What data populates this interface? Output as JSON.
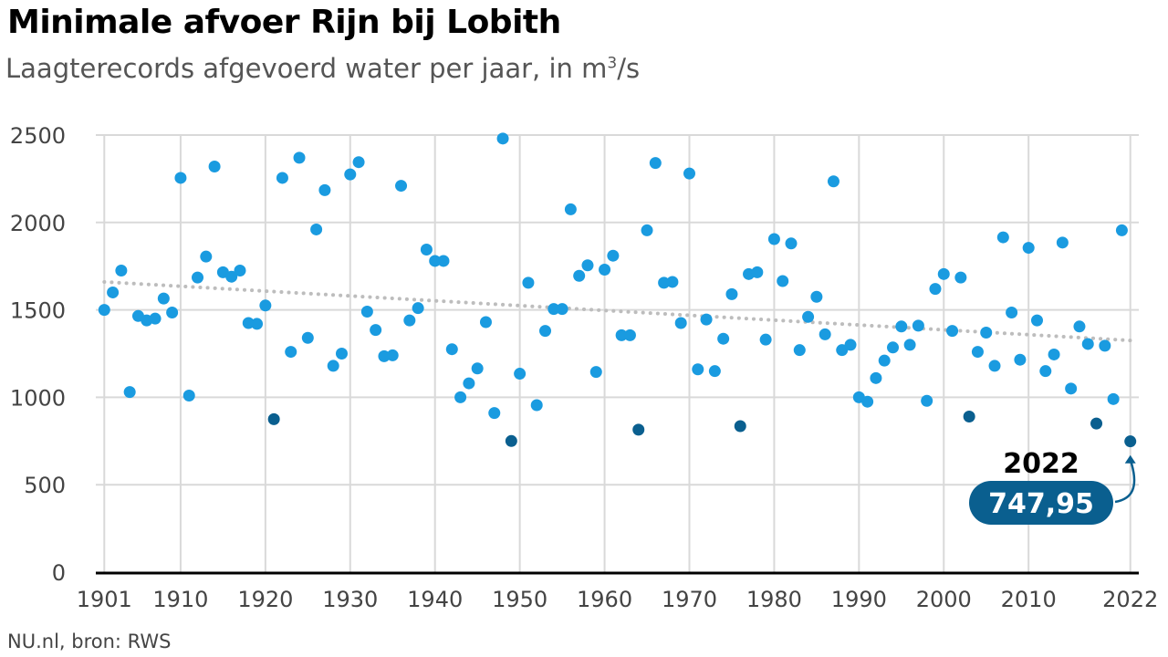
{
  "header": {
    "title": "Minimale afvoer Rijn bij Lobith",
    "subtitle_text": "Laagterecords afgevoerd water per jaar, in m",
    "subtitle_sup": "3",
    "subtitle_tail": "/s"
  },
  "footer": {
    "source": "NU.nl, bron: RWS"
  },
  "colors": {
    "point": "#1a9be0",
    "record_point": "#0a5f8f",
    "trend": "#bdbdbd",
    "grid": "#d9d9d9",
    "axis": "#000000",
    "callout_bg": "#0a5f8f"
  },
  "chart_data": {
    "type": "scatter",
    "title": "Minimale afvoer Rijn bij Lobith",
    "subtitle": "Laagterecords afgevoerd water per jaar, in m³/s",
    "xlabel": "",
    "ylabel": "",
    "xlim": [
      1900,
      2023
    ],
    "ylim": [
      0,
      2500
    ],
    "x_ticks": [
      1901,
      1910,
      1920,
      1930,
      1940,
      1950,
      1960,
      1970,
      1980,
      1990,
      2000,
      2010,
      2022
    ],
    "y_ticks": [
      0,
      500,
      1000,
      1500,
      2000,
      2500
    ],
    "grid": true,
    "trendline": {
      "style": "dotted",
      "start": [
        1901,
        1660
      ],
      "end": [
        2022,
        1325
      ]
    },
    "record_lows": [
      1921,
      1949,
      1964,
      1976,
      2003,
      2018,
      2022
    ],
    "points": [
      [
        1901,
        1500
      ],
      [
        1902,
        1600
      ],
      [
        1903,
        1725
      ],
      [
        1904,
        1030
      ],
      [
        1905,
        1465
      ],
      [
        1906,
        1440
      ],
      [
        1907,
        1450
      ],
      [
        1908,
        1565
      ],
      [
        1909,
        1485
      ],
      [
        1910,
        2255
      ],
      [
        1911,
        1010
      ],
      [
        1912,
        1685
      ],
      [
        1913,
        1805
      ],
      [
        1914,
        2320
      ],
      [
        1915,
        1715
      ],
      [
        1916,
        1690
      ],
      [
        1917,
        1725
      ],
      [
        1918,
        1425
      ],
      [
        1919,
        1420
      ],
      [
        1920,
        1525
      ],
      [
        1921,
        875
      ],
      [
        1922,
        2255
      ],
      [
        1923,
        1260
      ],
      [
        1924,
        2370
      ],
      [
        1925,
        1340
      ],
      [
        1926,
        1960
      ],
      [
        1927,
        2185
      ],
      [
        1928,
        1180
      ],
      [
        1929,
        1250
      ],
      [
        1930,
        2275
      ],
      [
        1931,
        2345
      ],
      [
        1932,
        1490
      ],
      [
        1933,
        1385
      ],
      [
        1934,
        1235
      ],
      [
        1935,
        1240
      ],
      [
        1936,
        2210
      ],
      [
        1937,
        1440
      ],
      [
        1938,
        1510
      ],
      [
        1939,
        1845
      ],
      [
        1940,
        1780
      ],
      [
        1941,
        1780
      ],
      [
        1942,
        1275
      ],
      [
        1943,
        1000
      ],
      [
        1944,
        1080
      ],
      [
        1945,
        1165
      ],
      [
        1946,
        1430
      ],
      [
        1947,
        910
      ],
      [
        1948,
        2480
      ],
      [
        1949,
        750
      ],
      [
        1950,
        1135
      ],
      [
        1951,
        1655
      ],
      [
        1952,
        955
      ],
      [
        1953,
        1380
      ],
      [
        1954,
        1505
      ],
      [
        1955,
        1505
      ],
      [
        1956,
        2075
      ],
      [
        1957,
        1695
      ],
      [
        1958,
        1755
      ],
      [
        1959,
        1145
      ],
      [
        1960,
        1730
      ],
      [
        1961,
        1810
      ],
      [
        1962,
        1355
      ],
      [
        1963,
        1355
      ],
      [
        1964,
        815
      ],
      [
        1965,
        1955
      ],
      [
        1966,
        2340
      ],
      [
        1967,
        1655
      ],
      [
        1968,
        1660
      ],
      [
        1969,
        1425
      ],
      [
        1970,
        2280
      ],
      [
        1971,
        1160
      ],
      [
        1972,
        1445
      ],
      [
        1973,
        1150
      ],
      [
        1974,
        1335
      ],
      [
        1975,
        1590
      ],
      [
        1976,
        835
      ],
      [
        1977,
        1705
      ],
      [
        1978,
        1715
      ],
      [
        1979,
        1330
      ],
      [
        1980,
        1905
      ],
      [
        1981,
        1665
      ],
      [
        1982,
        1880
      ],
      [
        1983,
        1270
      ],
      [
        1984,
        1460
      ],
      [
        1985,
        1575
      ],
      [
        1986,
        1360
      ],
      [
        1987,
        2235
      ],
      [
        1988,
        1270
      ],
      [
        1989,
        1300
      ],
      [
        1990,
        1000
      ],
      [
        1991,
        975
      ],
      [
        1992,
        1110
      ],
      [
        1993,
        1210
      ],
      [
        1994,
        1285
      ],
      [
        1995,
        1405
      ],
      [
        1996,
        1300
      ],
      [
        1997,
        1410
      ],
      [
        1998,
        980
      ],
      [
        1999,
        1620
      ],
      [
        2000,
        1705
      ],
      [
        2001,
        1380
      ],
      [
        2002,
        1685
      ],
      [
        2003,
        890
      ],
      [
        2004,
        1260
      ],
      [
        2005,
        1370
      ],
      [
        2006,
        1180
      ],
      [
        2007,
        1915
      ],
      [
        2008,
        1485
      ],
      [
        2009,
        1215
      ],
      [
        2010,
        1855
      ],
      [
        2011,
        1440
      ],
      [
        2012,
        1150
      ],
      [
        2013,
        1245
      ],
      [
        2014,
        1885
      ],
      [
        2015,
        1050
      ],
      [
        2016,
        1405
      ],
      [
        2017,
        1305
      ],
      [
        2018,
        850
      ],
      [
        2019,
        1295
      ],
      [
        2020,
        990
      ],
      [
        2021,
        1955
      ],
      [
        2022,
        748
      ]
    ],
    "annotation": {
      "year_label": "2022",
      "value_label": "747,95",
      "x": 2022,
      "y": 747.95
    }
  }
}
